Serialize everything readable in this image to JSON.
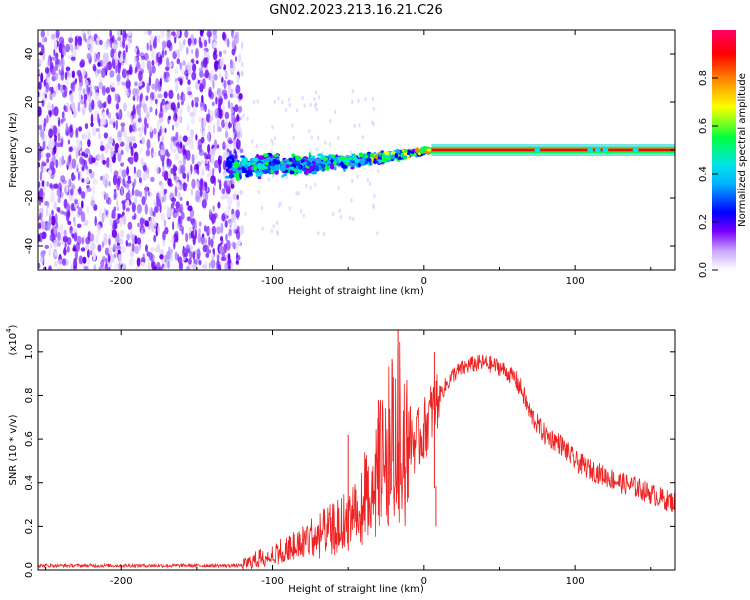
{
  "title": "GN02.2023.213.16.21.C26",
  "chart_data": [
    {
      "type": "heatmap",
      "title": "GN02.2023.213.16.21.C26",
      "xlabel": "Height of straight line (km)",
      "ylabel": "Frequency (Hz)",
      "xlim": [
        -255,
        166
      ],
      "ylim": [
        -50,
        50
      ],
      "x_ticks": [
        -200,
        -100,
        0,
        100
      ],
      "x_tick_labels": [
        "-200",
        "-100",
        "0",
        "100"
      ],
      "y_ticks": [
        -40,
        -20,
        0,
        20,
        40
      ],
      "y_tick_labels": [
        "-40",
        "-20",
        "0",
        "20",
        "40"
      ],
      "colorbar": {
        "label": "Normalized spectral amplitude",
        "range": [
          0,
          1
        ],
        "ticks": [
          0,
          0.2,
          0.4,
          0.6,
          0.8
        ],
        "tick_labels": [
          "0.0",
          "0.2",
          "0.4",
          "0.6",
          "0.8"
        ],
        "colors": [
          "#ffffff",
          "#7a00ff",
          "#0000ff",
          "#00e5ff",
          "#00ff40",
          "#ffff00",
          "#ff8000",
          "#ff0000",
          "#ff0066"
        ]
      },
      "features": {
        "noise_region_x": [
          -255,
          -120
        ],
        "signal_band_center_hz": 0,
        "broad_signal_x": [
          -130,
          -30
        ],
        "narrowing_x": [
          -30,
          5
        ],
        "steady_line_x": [
          5,
          166
        ]
      }
    },
    {
      "type": "line",
      "xlabel": "Height of straight line (km)",
      "ylabel": "SNR (10 * v/v)",
      "y_multiplier_label": "(x10",
      "y_multiplier_exp": "4",
      "xlim": [
        -255,
        166
      ],
      "ylim": [
        0,
        1.1
      ],
      "x_ticks": [
        -200,
        -100,
        0,
        100
      ],
      "x_tick_labels": [
        "-200",
        "-100",
        "0",
        "100"
      ],
      "y_ticks": [
        0,
        0.2,
        0.4,
        0.6,
        0.8,
        1.0
      ],
      "y_tick_labels": [
        "0.0",
        "0.2",
        "0.4",
        "0.6",
        "0.8",
        "1.0"
      ],
      "line_color": "#ee2222",
      "series": [
        {
          "x": [
            -255,
            -200,
            -150,
            -120,
            -110,
            -100,
            -90,
            -80,
            -70,
            -60,
            -50,
            -40,
            -35,
            -30,
            -25,
            -20,
            -15,
            -10,
            -5,
            0,
            10,
            20,
            30,
            40,
            50,
            60,
            65,
            70,
            80,
            90,
            100,
            110,
            120,
            130,
            140,
            150,
            160,
            166
          ],
          "values": [
            0.02,
            0.02,
            0.02,
            0.02,
            0.05,
            0.08,
            0.1,
            0.14,
            0.17,
            0.2,
            0.25,
            0.35,
            0.42,
            0.5,
            0.6,
            0.68,
            0.72,
            0.62,
            0.58,
            0.64,
            0.8,
            0.9,
            0.94,
            0.95,
            0.93,
            0.88,
            0.82,
            0.72,
            0.62,
            0.58,
            0.5,
            0.46,
            0.43,
            0.4,
            0.38,
            0.35,
            0.32,
            0.31
          ]
        }
      ],
      "spikes": [
        {
          "x": -17,
          "value": 1.1
        },
        {
          "x": 7,
          "value": 1.0
        },
        {
          "x": 8,
          "value": 0.2
        },
        {
          "x": -50,
          "value": 0.62
        },
        {
          "x": -30,
          "value": 0.78
        }
      ]
    }
  ]
}
